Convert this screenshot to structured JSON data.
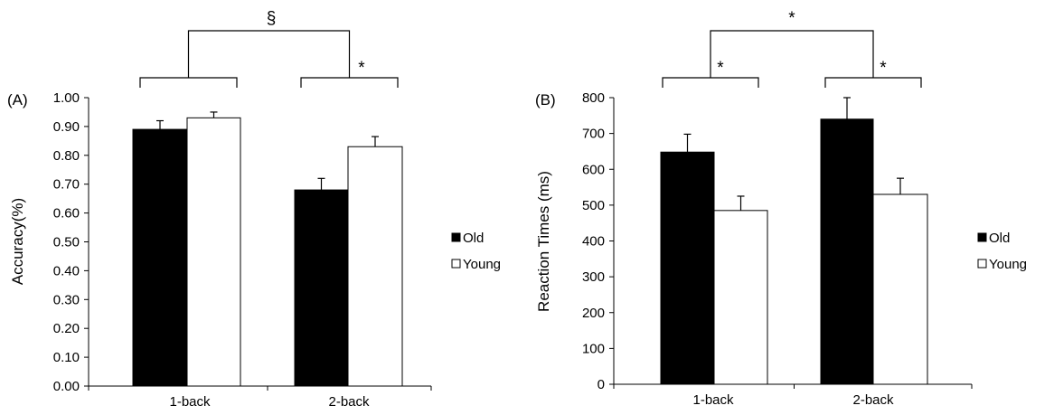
{
  "chart_data": [
    {
      "type": "bar",
      "panel_label": "(A)",
      "ylabel": "Accuracy(%)",
      "categories": [
        "1-back",
        "2-back"
      ],
      "series": [
        {
          "name": "Old",
          "values": [
            0.89,
            0.68
          ],
          "errors": [
            0.03,
            0.04
          ],
          "color": "#000000"
        },
        {
          "name": "Young",
          "values": [
            0.93,
            0.83
          ],
          "errors": [
            0.02,
            0.035
          ],
          "color": "#ffffff"
        }
      ],
      "ylim": [
        0,
        1.0
      ],
      "yticks": [
        0,
        0.1,
        0.2,
        0.3,
        0.4,
        0.5,
        0.6,
        0.7,
        0.8,
        0.9,
        1.0
      ],
      "ytick_labels": [
        "0.00",
        "0.10",
        "0.20",
        "0.30",
        "0.40",
        "0.50",
        "0.60",
        "0.70",
        "0.80",
        "0.90",
        "1.00"
      ],
      "legend": [
        "Old",
        "Young"
      ],
      "legend_position": "right",
      "grid": false,
      "annotations": {
        "top": "§",
        "left": "",
        "right": "*"
      }
    },
    {
      "type": "bar",
      "panel_label": "(B)",
      "ylabel": "Reaction Times (ms)",
      "categories": [
        "1-back",
        "2-back"
      ],
      "series": [
        {
          "name": "Old",
          "values": [
            648,
            740
          ],
          "errors": [
            50,
            60
          ],
          "color": "#000000"
        },
        {
          "name": "Young",
          "values": [
            485,
            530
          ],
          "errors": [
            40,
            45
          ],
          "color": "#ffffff"
        }
      ],
      "ylim": [
        0,
        800
      ],
      "yticks": [
        0,
        100,
        200,
        300,
        400,
        500,
        600,
        700,
        800
      ],
      "ytick_labels": [
        "0",
        "100",
        "200",
        "300",
        "400",
        "500",
        "600",
        "700",
        "800"
      ],
      "legend": [
        "Old",
        "Young"
      ],
      "legend_position": "right",
      "grid": false,
      "annotations": {
        "top": "*",
        "left": "*",
        "right": "*"
      }
    }
  ]
}
